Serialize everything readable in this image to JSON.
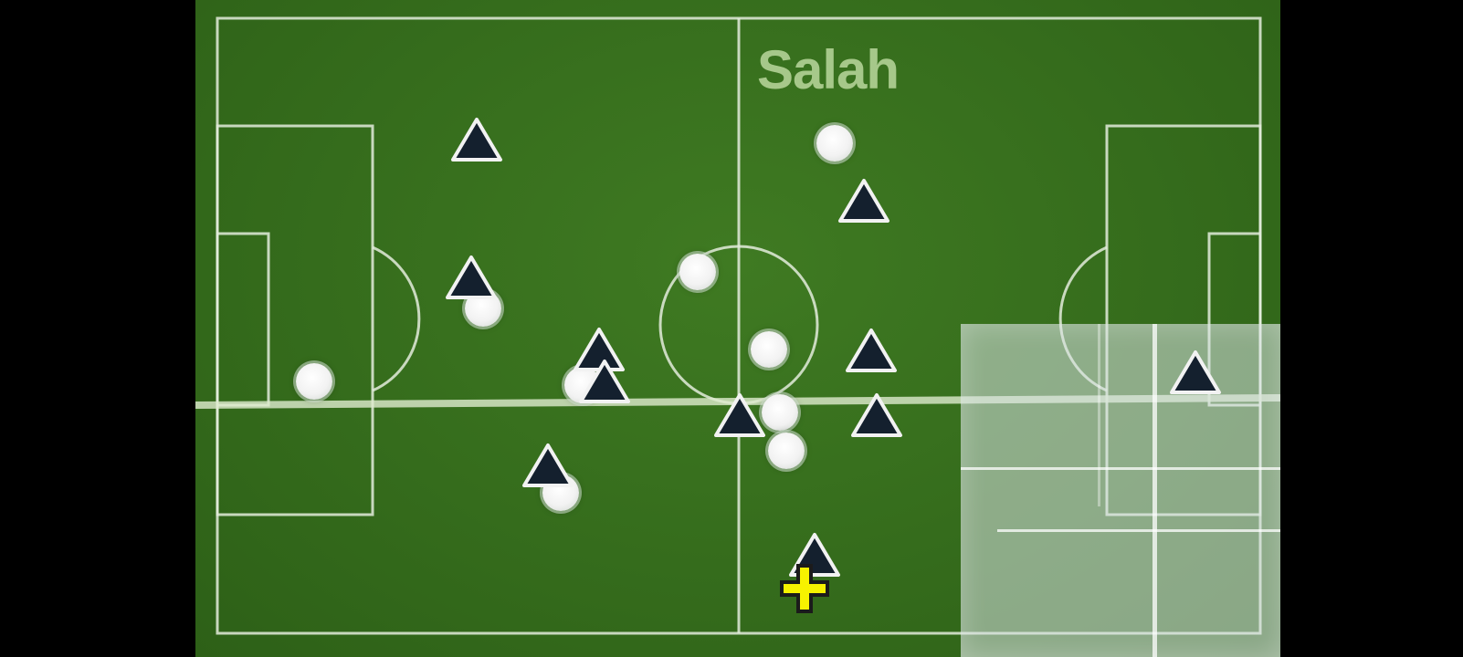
{
  "annotation": {
    "player_name_label": "Salah"
  },
  "colors": {
    "pitch_green": "#356c1c",
    "pitch_line": "#e6eee0",
    "team_white": "#ffffff",
    "team_dark": "#14202e",
    "marker_yellow": "#f7f200",
    "label_green": "#b3d296"
  },
  "icons": {
    "white_player": "white-circle-icon",
    "dark_player": "navy-triangle-icon",
    "focus_marker": "yellow-cross-icon"
  }
}
